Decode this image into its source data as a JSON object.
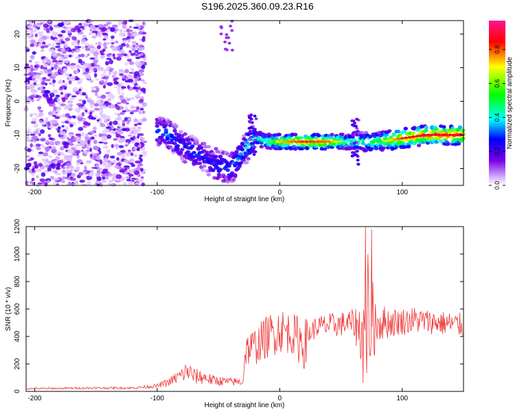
{
  "page_title": "S196.2025.360.09.23.R16",
  "chart_data": [
    {
      "type": "heatmap",
      "title": "S196.2025.360.09.23.R16",
      "xlabel": "Height of straight line (km)",
      "ylabel": "Frequency (Hz)",
      "xlim": [
        -207,
        150
      ],
      "ylim": [
        -25,
        24
      ],
      "x_ticks": [
        "-200",
        "-100",
        "0",
        "100"
      ],
      "y_ticks": [
        "20",
        "10",
        "0",
        "-10",
        "-20"
      ],
      "colorbar": {
        "label": "Normalized spectral amplitude",
        "range": [
          0,
          0.97
        ],
        "ticks": [
          "0.0",
          "0.2",
          "0.4",
          "0.6",
          "0.8"
        ],
        "colors": [
          "#ffffff",
          "#7a00e6",
          "#0000ff",
          "#00ffff",
          "#00ff00",
          "#ffff00",
          "#ff0000",
          "#ff1493"
        ]
      },
      "noise_region_x": [
        -207,
        -110
      ],
      "ridge": [
        {
          "x": -100,
          "y": -9,
          "amp": 0.3
        },
        {
          "x": -90,
          "y": -10,
          "amp": 0.35
        },
        {
          "x": -80,
          "y": -13,
          "amp": 0.28
        },
        {
          "x": -70,
          "y": -15,
          "amp": 0.3
        },
        {
          "x": -60,
          "y": -17,
          "amp": 0.25
        },
        {
          "x": -50,
          "y": -19,
          "amp": 0.28
        },
        {
          "x": -40,
          "y": -20,
          "amp": 0.3
        },
        {
          "x": -30,
          "y": -15,
          "amp": 0.35
        },
        {
          "x": -20,
          "y": -11,
          "amp": 0.45
        },
        {
          "x": -10,
          "y": -12,
          "amp": 0.5
        },
        {
          "x": 0,
          "y": -12,
          "amp": 0.7
        },
        {
          "x": 20,
          "y": -12,
          "amp": 0.8
        },
        {
          "x": 40,
          "y": -12,
          "amp": 0.75
        },
        {
          "x": 60,
          "y": -12,
          "amp": 0.45
        },
        {
          "x": 80,
          "y": -12,
          "amp": 0.55
        },
        {
          "x": 100,
          "y": -11,
          "amp": 0.8
        },
        {
          "x": 120,
          "y": -10,
          "amp": 0.85
        },
        {
          "x": 150,
          "y": -10,
          "amp": 0.85
        }
      ]
    },
    {
      "type": "line",
      "xlabel": "Height of straight line (km)",
      "ylabel": "SNR (10 * v/v)",
      "xlim": [
        -207,
        150
      ],
      "ylim": [
        0,
        1200
      ],
      "x_ticks": [
        "-200",
        "-100",
        "0",
        "100"
      ],
      "y_ticks": [
        "0",
        "200",
        "400",
        "600",
        "800",
        "1000",
        "1200"
      ],
      "color": "#ee3333",
      "series": [
        {
          "name": "SNR",
          "x": [
            -207,
            -150,
            -120,
            -100,
            -90,
            -80,
            -75,
            -70,
            -60,
            -55,
            -40,
            -30,
            -28,
            -20,
            -10,
            0,
            10,
            20,
            25,
            30,
            40,
            50,
            60,
            65,
            70,
            75,
            80,
            90,
            100,
            110,
            120,
            130,
            140,
            150
          ],
          "y": [
            20,
            25,
            25,
            40,
            70,
            120,
            150,
            110,
            100,
            80,
            70,
            70,
            300,
            330,
            400,
            450,
            420,
            350,
            430,
            470,
            480,
            490,
            500,
            450,
            420,
            500,
            500,
            500,
            510,
            520,
            510,
            500,
            490,
            480
          ],
          "noise_amplitude": [
            6,
            8,
            8,
            15,
            30,
            60,
            80,
            60,
            50,
            40,
            30,
            30,
            120,
            140,
            160,
            170,
            150,
            200,
            80,
            80,
            90,
            90,
            100,
            200,
            380,
            350,
            150,
            110,
            100,
            100,
            90,
            90,
            90,
            90
          ],
          "peaks": [
            {
              "x": 70,
              "y": 1200
            },
            {
              "x": 75,
              "y": 1180
            },
            {
              "x": 72,
              "y": 1000
            },
            {
              "x": 68,
              "y": 60
            }
          ]
        }
      ]
    }
  ]
}
